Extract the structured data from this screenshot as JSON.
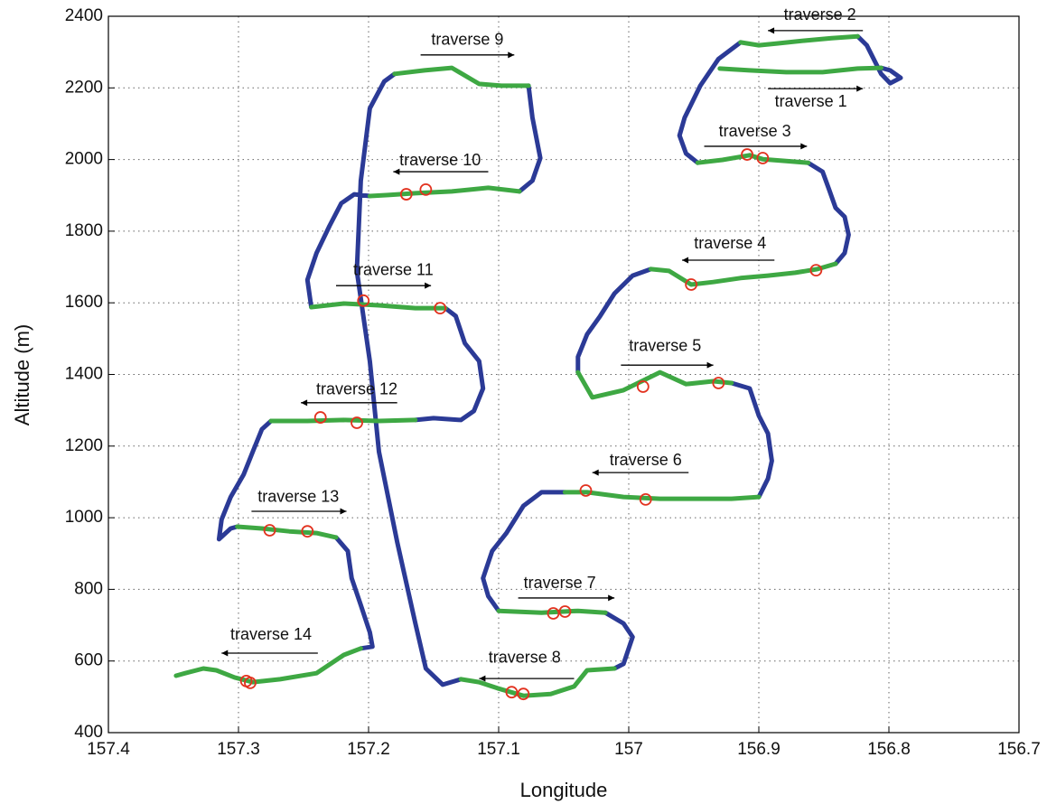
{
  "chart_data": {
    "type": "line",
    "x_label": "Longitude",
    "y_label": "Altitude (m)",
    "xlim": [
      157.4,
      156.7
    ],
    "ylim": [
      400,
      2400
    ],
    "xticks": [
      157.4,
      157.3,
      157.2,
      157.1,
      157,
      156.9,
      156.8,
      156.7
    ],
    "yticks": [
      400,
      600,
      800,
      1000,
      1200,
      1400,
      1600,
      1800,
      2000,
      2200,
      2400
    ],
    "grid": true,
    "series": [
      {
        "type": "line",
        "color": "#2b3a96",
        "x": [
          156.806,
          156.799,
          156.791,
          156.799,
          156.806,
          156.817,
          156.824,
          null,
          156.914,
          156.931,
          156.945,
          156.957,
          156.961,
          156.956,
          156.947,
          null,
          156.862,
          156.851,
          156.846,
          156.841,
          156.834,
          156.831,
          156.834,
          156.841,
          null,
          156.983,
          156.997,
          157.011,
          157.022,
          157.032,
          157.039,
          157.039,
          null,
          156.921,
          156.907,
          156.9,
          156.893,
          156.89,
          156.893,
          156.9,
          null,
          157.049,
          157.067,
          157.081,
          157.094,
          157.105,
          157.112,
          157.108,
          157.1,
          null,
          157.018,
          157.004,
          156.997,
          157.004,
          157.011,
          null,
          157.129,
          157.143,
          157.156,
          157.164,
          157.178,
          157.192,
          157.199,
          157.209,
          157.206,
          157.199,
          157.188,
          157.18,
          null,
          157.077,
          157.074,
          157.068,
          157.074,
          157.084,
          null,
          157.199,
          157.211,
          157.221,
          157.23,
          157.24,
          157.247,
          157.244,
          null,
          157.141,
          157.133,
          157.126,
          157.115,
          157.112,
          157.119,
          157.129,
          157.15,
          157.164,
          null,
          157.275,
          157.282,
          157.289,
          157.296,
          157.306,
          157.313,
          157.315,
          157.306,
          157.301,
          null,
          157.225,
          157.216,
          157.213,
          157.206,
          157.199,
          157.197,
          157.206
        ],
        "values": [
          2256,
          2249,
          2228,
          2213,
          2239,
          2319,
          2344,
          null,
          2327,
          2281,
          2206,
          2117,
          2067,
          2017,
          1991,
          null,
          1991,
          1966,
          1916,
          1865,
          1840,
          1790,
          1739,
          1709,
          null,
          1694,
          1676,
          1626,
          1563,
          1512,
          1449,
          1406,
          null,
          1376,
          1361,
          1285,
          1235,
          1159,
          1109,
          1058,
          null,
          1071,
          1071,
          1033,
          957,
          907,
          831,
          781,
          740,
          null,
          735,
          705,
          667,
          592,
          579,
          null,
          549,
          534,
          579,
          705,
          932,
          1184,
          1437,
          1689,
          1941,
          2143,
          2218,
          2239,
          null,
          2206,
          2117,
          2004,
          1941,
          1911,
          null,
          1898,
          1903,
          1878,
          1815,
          1739,
          1664,
          1588,
          null,
          1585,
          1563,
          1487,
          1437,
          1361,
          1298,
          1273,
          1278,
          1273,
          null,
          1270,
          1247,
          1184,
          1121,
          1058,
          995,
          940,
          970,
          975,
          null,
          945,
          907,
          831,
          756,
          680,
          640,
          635
        ]
      },
      {
        "type": "line",
        "color": "#3ea843",
        "x": [
          156.93,
          156.907,
          156.879,
          156.851,
          156.824,
          156.806,
          null,
          156.824,
          156.844,
          156.865,
          156.886,
          156.9,
          156.914,
          null,
          156.947,
          156.928,
          156.907,
          156.897,
          156.879,
          156.862,
          null,
          156.841,
          156.855,
          156.872,
          156.893,
          156.914,
          156.935,
          156.952,
          156.969,
          156.983,
          null,
          157.039,
          157.028,
          157.004,
          156.976,
          156.956,
          156.935,
          156.921,
          null,
          156.9,
          156.921,
          156.949,
          156.976,
          157.004,
          157.032,
          157.049,
          null,
          157.1,
          157.067,
          157.039,
          157.018,
          null,
          157.011,
          157.032,
          157.042,
          157.06,
          157.081,
          157.101,
          157.115,
          157.129,
          null,
          157.18,
          157.157,
          157.136,
          157.115,
          157.098,
          157.077,
          null,
          157.084,
          157.108,
          157.136,
          157.164,
          157.185,
          157.199,
          null,
          157.244,
          157.219,
          157.192,
          157.164,
          157.141,
          null,
          157.164,
          157.192,
          157.219,
          157.247,
          157.275,
          null,
          157.301,
          157.282,
          157.261,
          157.24,
          157.225,
          null,
          157.206,
          157.219,
          157.24,
          157.268,
          157.289,
          157.303,
          157.317,
          157.327,
          157.341,
          157.348
        ],
        "values": [
          2254,
          2249,
          2244,
          2244,
          2254,
          2256,
          null,
          2344,
          2339,
          2332,
          2324,
          2319,
          2327,
          null,
          1991,
          1999,
          2012,
          2001,
          1996,
          1991,
          null,
          1709,
          1694,
          1684,
          1676,
          1669,
          1658,
          1651,
          1689,
          1694,
          null,
          1406,
          1336,
          1356,
          1406,
          1373,
          1381,
          1376,
          null,
          1058,
          1053,
          1053,
          1053,
          1058,
          1071,
          1071,
          null,
          740,
          735,
          740,
          735,
          null,
          579,
          574,
          529,
          508,
          503,
          524,
          541,
          549,
          null,
          2239,
          2249,
          2256,
          2211,
          2206,
          2206,
          null,
          1911,
          1921,
          1911,
          1906,
          1901,
          1898,
          null,
          1588,
          1598,
          1593,
          1585,
          1585,
          null,
          1273,
          1270,
          1273,
          1270,
          1270,
          null,
          975,
          970,
          962,
          957,
          945,
          null,
          635,
          617,
          566,
          549,
          541,
          554,
          574,
          579,
          566,
          559
        ]
      },
      {
        "type": "scatter",
        "color": "#e2321f",
        "x": [
          157.171,
          157.156,
          157.204,
          157.145,
          157.237,
          157.209,
          157.276,
          157.247,
          157.294,
          157.291,
          157.09,
          157.081,
          157.058,
          157.049,
          157.033,
          156.987,
          156.989,
          156.931,
          156.952,
          156.856,
          156.909,
          156.897
        ],
        "values": [
          1903,
          1916,
          1606,
          1585,
          1280,
          1265,
          965,
          962,
          544,
          539,
          513,
          508,
          733,
          738,
          1076,
          1051,
          1366,
          1376,
          1651,
          1691,
          2014,
          2004
        ]
      }
    ],
    "annotations": [
      {
        "text": "traverse 1",
        "x": 156.86,
        "y": 2160,
        "arrow_x": [
          156.893,
          156.82
        ],
        "arrow_y": 2198
      },
      {
        "text": "traverse 2",
        "x": 156.853,
        "y": 2402,
        "arrow_x": [
          156.82,
          156.893
        ],
        "arrow_y": 2360
      },
      {
        "text": "traverse 3",
        "x": 156.903,
        "y": 2077,
        "arrow_x": [
          156.942,
          156.863
        ],
        "arrow_y": 2037
      },
      {
        "text": "traverse 4",
        "x": 156.922,
        "y": 1764,
        "arrow_x": [
          156.888,
          156.959
        ],
        "arrow_y": 1719
      },
      {
        "text": "traverse 5",
        "x": 156.972,
        "y": 1477,
        "arrow_x": [
          157.006,
          156.935
        ],
        "arrow_y": 1426
      },
      {
        "text": "traverse 6",
        "x": 156.987,
        "y": 1159,
        "arrow_x": [
          156.954,
          157.028
        ],
        "arrow_y": 1126
      },
      {
        "text": "traverse 7",
        "x": 157.053,
        "y": 816,
        "arrow_x": [
          157.085,
          157.011
        ],
        "arrow_y": 776
      },
      {
        "text": "traverse 8",
        "x": 157.08,
        "y": 607,
        "arrow_x": [
          157.042,
          157.115
        ],
        "arrow_y": 551
      },
      {
        "text": "traverse 9",
        "x": 157.124,
        "y": 2332,
        "arrow_x": [
          157.16,
          157.088
        ],
        "arrow_y": 2292
      },
      {
        "text": "traverse 10",
        "x": 157.145,
        "y": 1996,
        "arrow_x": [
          157.108,
          157.181
        ],
        "arrow_y": 1966
      },
      {
        "text": "traverse 11",
        "x": 157.181,
        "y": 1689,
        "arrow_x": [
          157.225,
          157.152
        ],
        "arrow_y": 1648
      },
      {
        "text": "traverse 12",
        "x": 157.209,
        "y": 1356,
        "arrow_x": [
          157.178,
          157.252
        ],
        "arrow_y": 1321
      },
      {
        "text": "traverse 13",
        "x": 157.254,
        "y": 1056,
        "arrow_x": [
          157.29,
          157.217
        ],
        "arrow_y": 1018
      },
      {
        "text": "traverse 14",
        "x": 157.275,
        "y": 672,
        "arrow_x": [
          157.239,
          157.313
        ],
        "arrow_y": 622
      }
    ]
  }
}
